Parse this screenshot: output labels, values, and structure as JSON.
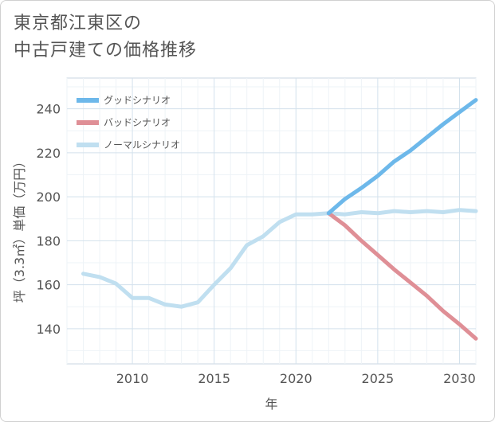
{
  "title": {
    "line1": "東京都江東区の",
    "line2": "中古戸建ての価格推移"
  },
  "chart_data": {
    "type": "line",
    "xlabel": "年",
    "ylabel": "坪（3.3㎡）単価（万円）",
    "xlim": [
      2006.0,
      2031.0
    ],
    "ylim": [
      124,
      254
    ],
    "xticks": [
      2010,
      2015,
      2020,
      2025,
      2030
    ],
    "yticks": [
      140,
      160,
      180,
      200,
      220,
      240
    ],
    "grid": true,
    "legend_position": "top-left",
    "series": [
      {
        "name": "グッドシナリオ",
        "color": "#6db8ea",
        "x": [
          2022,
          2023,
          2024,
          2025,
          2026,
          2027,
          2028,
          2029,
          2030,
          2031
        ],
        "y": [
          192.5,
          199,
          204,
          209.5,
          216,
          221,
          227,
          233,
          238.5,
          244
        ]
      },
      {
        "name": "バッドシナリオ",
        "color": "#df8f96",
        "x": [
          2022,
          2023,
          2024,
          2025,
          2026,
          2027,
          2028,
          2029,
          2030,
          2031
        ],
        "y": [
          192.5,
          187,
          180,
          173.5,
          167,
          161,
          155,
          148,
          142,
          135.5
        ]
      },
      {
        "name": "ノーマルシナリオ",
        "color": "#c0dff0",
        "x": [
          2007,
          2008,
          2009,
          2010,
          2011,
          2012,
          2013,
          2014,
          2015,
          2016,
          2017,
          2018,
          2019,
          2020,
          2021,
          2022,
          2023,
          2024,
          2025,
          2026,
          2027,
          2028,
          2029,
          2030,
          2031
        ],
        "y": [
          165,
          163.5,
          160.5,
          154,
          154,
          151,
          150,
          152,
          160,
          167.5,
          178,
          182,
          188.5,
          192,
          192,
          192.5,
          192,
          193,
          192.5,
          193.5,
          193,
          193.5,
          193,
          194,
          193.5
        ]
      }
    ]
  }
}
